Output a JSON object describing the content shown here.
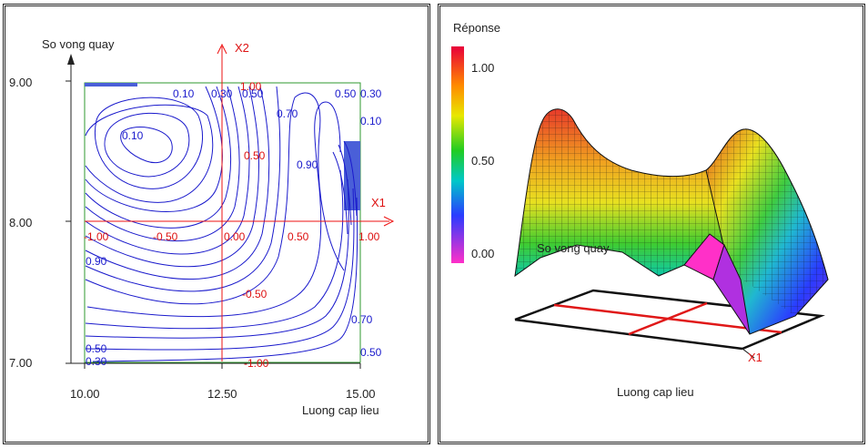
{
  "colors": {
    "contour": "#1a1acc",
    "coded_axes": "#ee1111",
    "box": "#2f9a2f",
    "fill": "#4a5fd8"
  },
  "chart_data": [
    {
      "type": "contour",
      "xlabel": "Luong cap lieu",
      "ylabel": "So vong quay",
      "xlim": [
        10,
        15
      ],
      "ylim": [
        7,
        9
      ],
      "x_ticks": [
        "10.00",
        "12.50",
        "15.00"
      ],
      "y_ticks": [
        "7.00",
        "8.00",
        "9.00"
      ],
      "coded_axes": {
        "x_name": "X1",
        "y_name": "X2",
        "x_labels": [
          "-1.00",
          "-0.50",
          "0.00",
          "0.50",
          "1.00"
        ],
        "y_labels": [
          "1.00",
          "0.50",
          "-0.50",
          "-1.00"
        ]
      },
      "contour_labels": [
        "0.10",
        "0.30",
        "0.50",
        "0.10",
        "0.70",
        "0.50",
        "0.30",
        "0.10",
        "0.90",
        "0.90",
        "0.70",
        "0.50",
        "0.30",
        "0.50"
      ]
    },
    {
      "type": "surface3d",
      "colorbar_title": "Réponse",
      "colorbar_ticks": [
        "1.00",
        "0.50",
        "0.00"
      ],
      "axis_labels": {
        "y": "So vong quay",
        "x": "Luong cap lieu",
        "x_coded": "X1"
      }
    }
  ]
}
